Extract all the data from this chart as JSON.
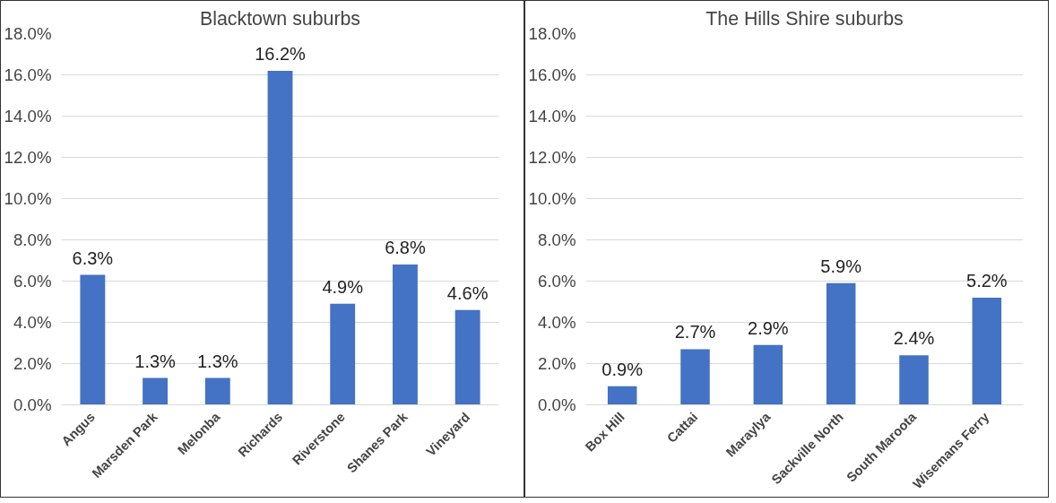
{
  "chart_data": [
    {
      "type": "bar",
      "title": "Blacktown suburbs",
      "categories": [
        "Angus",
        "Marsden Park",
        "Melonba",
        "Richards",
        "Riverstone",
        "Shanes Park",
        "Vineyard"
      ],
      "values": [
        6.3,
        1.3,
        1.3,
        16.2,
        4.9,
        6.8,
        4.6
      ],
      "color": "#4472c4",
      "value_labels": [
        "6.3%",
        "1.3%",
        "1.3%",
        "16.2%",
        "4.9%",
        "6.8%",
        "4.6%"
      ],
      "ylim": [
        0,
        18
      ],
      "yticks": [
        {
          "value": 0,
          "label": "0.0%"
        },
        {
          "value": 2,
          "label": "2.0%"
        },
        {
          "value": 4,
          "label": "4.0%"
        },
        {
          "value": 6,
          "label": "6.0%"
        },
        {
          "value": 8,
          "label": "8.0%"
        },
        {
          "value": 10,
          "label": "10.0%"
        },
        {
          "value": 12,
          "label": "12.0%"
        },
        {
          "value": 14,
          "label": "14.0%"
        },
        {
          "value": 16,
          "label": "16.0%"
        },
        {
          "value": 18,
          "label": "18.0%"
        }
      ],
      "grid": "y"
    },
    {
      "type": "bar",
      "title": "The Hills Shire suburbs",
      "categories": [
        "Box Hill",
        "Cattai",
        "Maraylya",
        "Sackville North",
        "South Maroota",
        "Wisemans Ferry"
      ],
      "values": [
        0.9,
        2.7,
        2.9,
        5.9,
        2.4,
        5.2
      ],
      "color": "#4472c4",
      "value_labels": [
        "0.9%",
        "2.7%",
        "2.9%",
        "5.9%",
        "2.4%",
        "5.2%"
      ],
      "ylim": [
        0,
        18
      ],
      "yticks": [
        {
          "value": 0,
          "label": "0.0%"
        },
        {
          "value": 2,
          "label": "2.0%"
        },
        {
          "value": 4,
          "label": "4.0%"
        },
        {
          "value": 6,
          "label": "6.0%"
        },
        {
          "value": 8,
          "label": "8.0%"
        },
        {
          "value": 10,
          "label": "10.0%"
        },
        {
          "value": 12,
          "label": "12.0%"
        },
        {
          "value": 14,
          "label": "14.0%"
        },
        {
          "value": 16,
          "label": "16.0%"
        },
        {
          "value": 18,
          "label": "18.0%"
        }
      ],
      "grid": "y"
    }
  ]
}
